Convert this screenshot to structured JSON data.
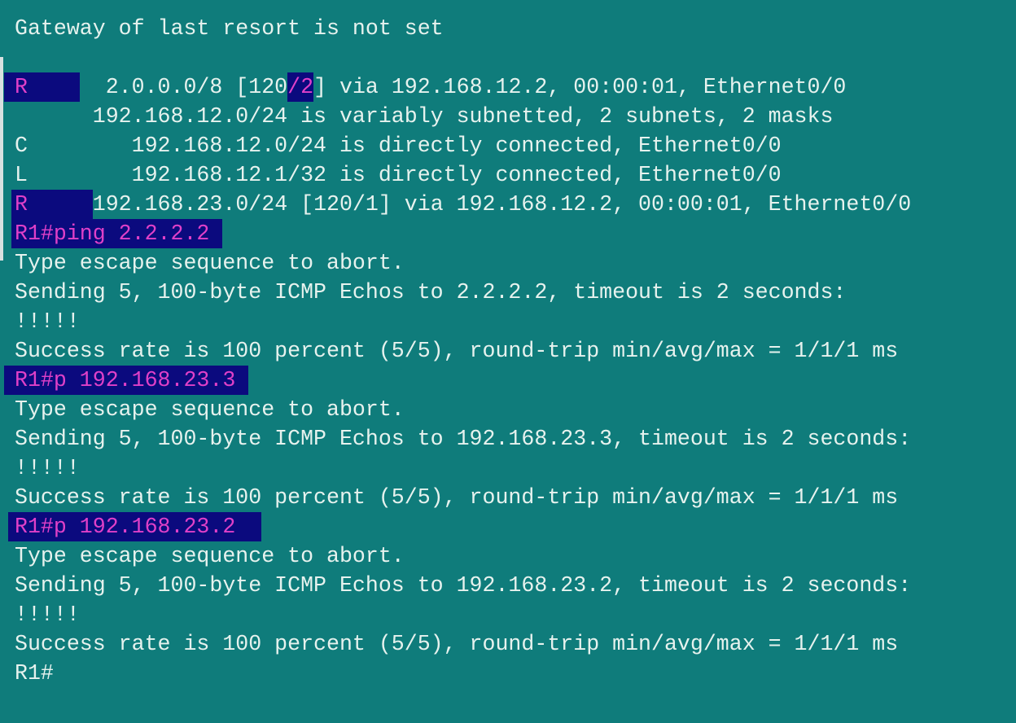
{
  "terminal": {
    "colors": {
      "background": "#0f7c7b",
      "text": "#e6f2ee",
      "highlight_bg": "#0b0a7e",
      "highlight_text": "#e040c8"
    },
    "lines": [
      {
        "text": "Gateway of last resort is not set"
      },
      {
        "text": ""
      },
      {
        "hl1": "R    ",
        "mid": "  2.0.0.0/8 [120",
        "hl2": "/2",
        "rest": "] via 192.168.12.2, 00:00:01, Ethernet0/0"
      },
      {
        "text": "      192.168.12.0/24 is variably subnetted, 2 subnets, 2 masks"
      },
      {
        "text": "C        192.168.12.0/24 is directly connected, Ethernet0/0"
      },
      {
        "text": "L        192.168.12.1/32 is directly connected, Ethernet0/0"
      },
      {
        "hl1": "R     ",
        "rest": "192.168.23.0/24 [120/1] via 192.168.12.2, 00:00:01, Ethernet0/0"
      },
      {
        "hl1": "R1#ping 2.2.2.2 "
      },
      {
        "text": "Type escape sequence to abort."
      },
      {
        "text": "Sending 5, 100-byte ICMP Echos to 2.2.2.2, timeout is 2 seconds:"
      },
      {
        "text": "!!!!!"
      },
      {
        "text": "Success rate is 100 percent (5/5), round-trip min/avg/max = 1/1/1 ms"
      },
      {
        "hl1": "R1#p 192.168.23.3 "
      },
      {
        "text": "Type escape sequence to abort."
      },
      {
        "text": "Sending 5, 100-byte ICMP Echos to 192.168.23.3, timeout is 2 seconds:"
      },
      {
        "text": "!!!!!"
      },
      {
        "text": "Success rate is 100 percent (5/5), round-trip min/avg/max = 1/1/1 ms"
      },
      {
        "hl1": "R1#p 192.168.23.2  "
      },
      {
        "text": "Type escape sequence to abort."
      },
      {
        "text": "Sending 5, 100-byte ICMP Echos to 192.168.23.2, timeout is 2 seconds:"
      },
      {
        "text": "!!!!!"
      },
      {
        "text": "Success rate is 100 percent (5/5), round-trip min/avg/max = 1/1/1 ms"
      },
      {
        "text": "R1#"
      }
    ]
  }
}
